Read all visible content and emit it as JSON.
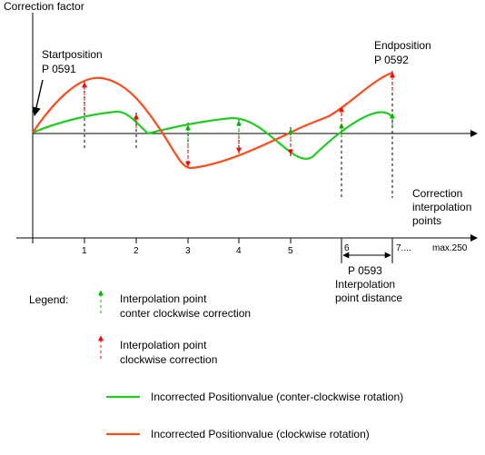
{
  "axis": {
    "y_title": "Correction factor",
    "x_title_line1": "Correction",
    "x_title_line2": "interpolation",
    "x_title_line3": "points"
  },
  "start": {
    "line1": "Startposition",
    "line2": "P 0591"
  },
  "end": {
    "line1": "Endposition",
    "line2": "P 0592"
  },
  "ticks": [
    "1",
    "2",
    "3",
    "4",
    "5",
    "6",
    "7...."
  ],
  "max_label": "max.250",
  "distance": {
    "line1": "P 0593",
    "line2": "Interpolation",
    "line3": "point distance"
  },
  "legend": {
    "title": "Legend:",
    "ccw_point_line1": "Interpolation point",
    "ccw_point_line2": "conter clockwise correction",
    "cw_point_line1": "Interpolation point",
    "cw_point_line2": "clockwise correction",
    "green_line": "Incorrected Positionvalue (conter-clockwise rotation)",
    "red_line": "Incorrected Positionvalue (clockwise rotation)"
  },
  "colors": {
    "red": "#ff4a1a",
    "green": "#22cc22",
    "arrow_red": "#ff0000",
    "arrow_green": "#00bb00"
  }
}
